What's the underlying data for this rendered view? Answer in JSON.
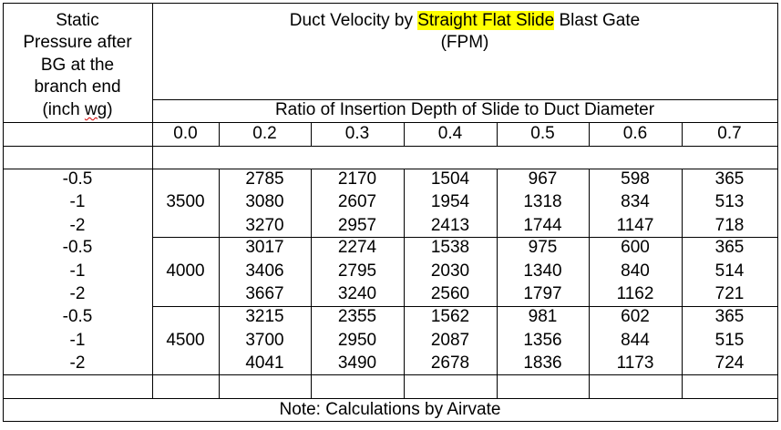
{
  "left_header": {
    "lines": [
      "Static",
      "Pressure after",
      "BG at the",
      "branch end"
    ],
    "unit_open": "(inch ",
    "unit_word": "wg",
    "unit_close": ")"
  },
  "title": {
    "prefix": "Duct Velocity by ",
    "highlight": "Straight Flat Slide",
    "suffix": " Blast Gate",
    "unit": "(FPM)"
  },
  "subheader": "Ratio of Insertion Depth of Slide to Duct Diameter",
  "ratios": [
    "0.0",
    "0.2",
    "0.3",
    "0.4",
    "0.5",
    "0.6",
    "0.7"
  ],
  "groups": [
    {
      "velocity": "3500",
      "rows": [
        {
          "pressure": "-0.5",
          "values": [
            "2785",
            "2170",
            "1504",
            "967",
            "598",
            "365"
          ]
        },
        {
          "pressure": "-1",
          "values": [
            "3080",
            "2607",
            "1954",
            "1318",
            "834",
            "513"
          ]
        },
        {
          "pressure": "-2",
          "values": [
            "3270",
            "2957",
            "2413",
            "1744",
            "1147",
            "718"
          ]
        }
      ]
    },
    {
      "velocity": "4000",
      "rows": [
        {
          "pressure": "-0.5",
          "values": [
            "3017",
            "2274",
            "1538",
            "975",
            "600",
            "365"
          ]
        },
        {
          "pressure": "-1",
          "values": [
            "3406",
            "2795",
            "2030",
            "1340",
            "840",
            "514"
          ]
        },
        {
          "pressure": "-2",
          "values": [
            "3667",
            "3240",
            "2560",
            "1797",
            "1162",
            "721"
          ]
        }
      ]
    },
    {
      "velocity": "4500",
      "rows": [
        {
          "pressure": "-0.5",
          "values": [
            "3215",
            "2355",
            "1562",
            "981",
            "602",
            "365"
          ]
        },
        {
          "pressure": "-1",
          "values": [
            "3700",
            "2950",
            "2087",
            "1356",
            "844",
            "515"
          ]
        },
        {
          "pressure": "-2",
          "values": [
            "4041",
            "3490",
            "2678",
            "1836",
            "1173",
            "724"
          ]
        }
      ]
    }
  ],
  "note": "Note: Calculations by Airvate"
}
